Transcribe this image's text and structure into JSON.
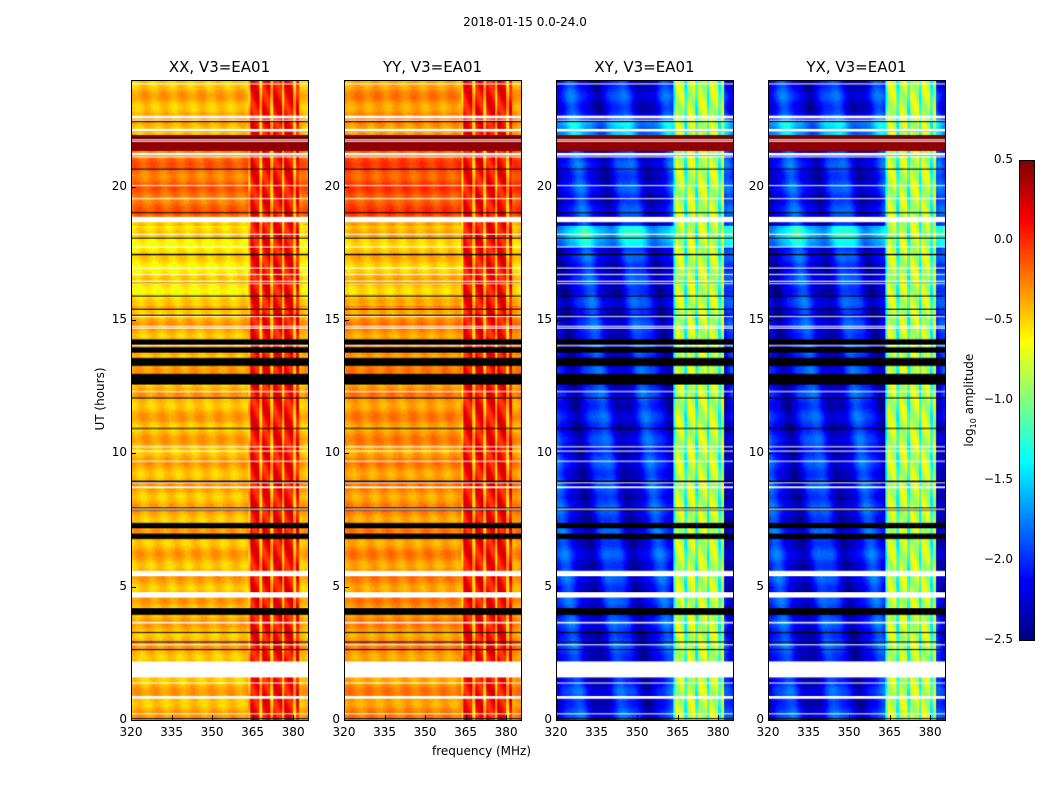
{
  "chart_data": {
    "type": "heatmap",
    "title": "2018-01-15 0.0-24.0",
    "xlabel": "frequency (MHz)",
    "ylabel": "UT (hours)",
    "xlim": [
      320,
      385.5
    ],
    "ylim": [
      0,
      24
    ],
    "xticks": [
      320,
      335,
      350,
      365,
      380
    ],
    "yticks": [
      0,
      5,
      10,
      15,
      20
    ],
    "panels": [
      {
        "title": "XX, V3=EA01",
        "base": -0.4,
        "rfi_level": 0.1,
        "colors_hi": true
      },
      {
        "title": "YY, V3=EA01",
        "base": -0.3,
        "rfi_level": 0.1,
        "colors_hi": true
      },
      {
        "title": "XY, V3=EA01",
        "base": -2.1,
        "rfi_level": -0.8,
        "colors_hi": false
      },
      {
        "title": "YX, V3=EA01",
        "base": -2.1,
        "rfi_level": -0.8,
        "colors_hi": false
      }
    ],
    "rfi_band_mhz": [
      363,
      382
    ],
    "high_amplitude_ut": [
      21.4,
      22.0
    ],
    "flagged_black_ut": [
      [
        3.95,
        4.2
      ],
      [
        6.8,
        7.0
      ],
      [
        7.2,
        7.4
      ],
      [
        12.6,
        13.0
      ],
      [
        13.3,
        13.6
      ],
      [
        13.8,
        14.0
      ],
      [
        14.1,
        14.3
      ]
    ],
    "no_data_ut": [
      [
        0.8,
        0.9
      ],
      [
        1.6,
        2.2
      ],
      [
        4.6,
        4.8
      ],
      [
        5.4,
        5.6
      ],
      [
        18.7,
        18.9
      ],
      [
        21.2,
        21.3
      ],
      [
        22.1,
        22.2
      ],
      [
        22.6,
        22.7
      ]
    ],
    "colorbar": {
      "label_parts": [
        "log",
        "10",
        " amplitude"
      ],
      "range": [
        -2.5,
        0.5
      ],
      "ticks": [
        "0.5",
        "0.0",
        "−0.5",
        "−1.0",
        "−1.5",
        "−2.0",
        "−2.5"
      ],
      "tick_values": [
        0.5,
        0,
        -0.5,
        -1,
        -1.5,
        -2,
        -2.5
      ],
      "colormap": "jet"
    }
  }
}
